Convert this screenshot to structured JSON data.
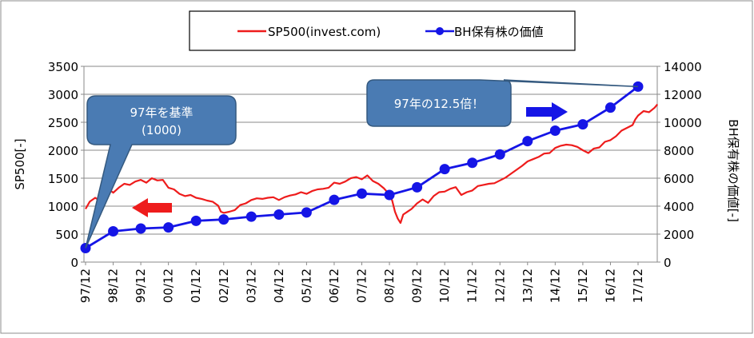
{
  "chart_data": {
    "type": "line",
    "title": "",
    "legend": {
      "position": "top",
      "entries": [
        "SP500(invest.com)",
        "BH保有株の価値"
      ]
    },
    "colors": {
      "sp500": "#ee1c1c",
      "bh": "#1515e6",
      "callout_fill": "#4a7bb3",
      "callout_stroke": "#34597f",
      "arrow_red": "#ee1c1c",
      "arrow_blue": "#1515e6"
    },
    "x_categories": [
      "97/12",
      "98/12",
      "99/12",
      "00/12",
      "01/12",
      "02/12",
      "03/12",
      "04/12",
      "05/12",
      "06/12",
      "07/12",
      "08/12",
      "09/12",
      "10/12",
      "11/12",
      "12/12",
      "13/12",
      "14/12",
      "15/12",
      "16/12",
      "17/12"
    ],
    "left_axis": {
      "label": "SP500[-]",
      "min": 0,
      "max": 3500,
      "ticks": [
        0,
        500,
        1000,
        1500,
        2000,
        2500,
        3000,
        3500
      ]
    },
    "right_axis": {
      "label": "BH保有株の価値[-]",
      "min": 0,
      "max": 14000,
      "ticks": [
        0,
        2000,
        4000,
        6000,
        8000,
        10000,
        12000,
        14000
      ]
    },
    "series": [
      {
        "name": "SP500(invest.com)",
        "axis": "left",
        "x": [
          0,
          0.15,
          0.35,
          0.5,
          0.7,
          0.85,
          1,
          1.2,
          1.4,
          1.6,
          1.8,
          2,
          2.2,
          2.4,
          2.6,
          2.8,
          3,
          3.2,
          3.4,
          3.6,
          3.8,
          4,
          4.2,
          4.4,
          4.6,
          4.8,
          4.9,
          5,
          5.2,
          5.4,
          5.6,
          5.8,
          6,
          6.2,
          6.4,
          6.6,
          6.8,
          7,
          7.2,
          7.4,
          7.6,
          7.8,
          8,
          8.2,
          8.4,
          8.6,
          8.8,
          9,
          9.2,
          9.4,
          9.6,
          9.8,
          10,
          10.2,
          10.4,
          10.6,
          10.8,
          11,
          11.1,
          11.2,
          11.3,
          11.4,
          11.5,
          11.8,
          12,
          12.2,
          12.4,
          12.6,
          12.8,
          13,
          13.2,
          13.4,
          13.6,
          13.8,
          14,
          14.2,
          14.4,
          14.6,
          14.8,
          15,
          15.2,
          15.4,
          15.6,
          15.8,
          16,
          16.2,
          16.4,
          16.6,
          16.8,
          17,
          17.2,
          17.4,
          17.6,
          17.8,
          18,
          18.2,
          18.4,
          18.6,
          18.8,
          19,
          19.2,
          19.4,
          19.6,
          19.8,
          19.9,
          20,
          20.2,
          20.4,
          20.6,
          20.7
        ],
        "values": [
          950,
          1080,
          1150,
          1100,
          1230,
          1300,
          1240,
          1330,
          1400,
          1380,
          1440,
          1470,
          1420,
          1500,
          1460,
          1470,
          1330,
          1300,
          1220,
          1180,
          1200,
          1150,
          1130,
          1100,
          1080,
          1010,
          900,
          880,
          900,
          930,
          1020,
          1050,
          1110,
          1140,
          1130,
          1150,
          1160,
          1110,
          1160,
          1190,
          1210,
          1250,
          1220,
          1270,
          1300,
          1310,
          1330,
          1420,
          1400,
          1440,
          1500,
          1520,
          1480,
          1550,
          1450,
          1400,
          1320,
          1210,
          1100,
          900,
          780,
          700,
          850,
          950,
          1050,
          1120,
          1060,
          1180,
          1250,
          1260,
          1310,
          1340,
          1200,
          1250,
          1280,
          1360,
          1380,
          1400,
          1410,
          1460,
          1510,
          1580,
          1650,
          1720,
          1800,
          1840,
          1880,
          1940,
          1950,
          2040,
          2080,
          2100,
          2090,
          2060,
          2000,
          1950,
          2030,
          2050,
          2150,
          2180,
          2250,
          2350,
          2400,
          2450,
          2550,
          2620,
          2700,
          2680,
          2760,
          2820
        ]
      },
      {
        "name": "BH保有株の価値",
        "axis": "right",
        "x": [
          0,
          1,
          2,
          3,
          4,
          5,
          6,
          7,
          8,
          9,
          10,
          11,
          12,
          13,
          14,
          15,
          16,
          17,
          18,
          19,
          20
        ],
        "values": [
          1000,
          2200,
          2400,
          2480,
          2950,
          3050,
          3250,
          3400,
          3550,
          4450,
          4900,
          4800,
          5350,
          6650,
          7100,
          7700,
          8650,
          9400,
          9850,
          11050,
          12550
        ]
      }
    ],
    "annotations": {
      "callout_left": {
        "lines": [
          "97年を基準",
          "(1000)"
        ]
      },
      "callout_right": {
        "text": "97年の12.5倍！"
      }
    }
  }
}
